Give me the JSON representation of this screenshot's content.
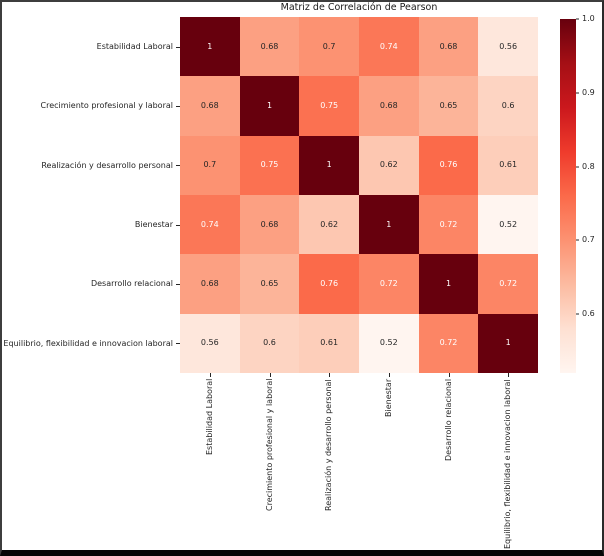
{
  "figure": {
    "background": "#ffffff",
    "frame_border_color": "#3d3d3d",
    "frame_bottom_bar_color": "#050505"
  },
  "chart_data": {
    "type": "heatmap",
    "title": "Matriz de Correlación de Pearson",
    "categories": [
      "Estabilidad Laboral",
      "Crecimiento profesional y laboral",
      "Realización y desarrollo personal",
      "Bienestar",
      "Desarrollo relacional",
      "Equilibrio, flexibilidad e innovacion laboral"
    ],
    "matrix": [
      [
        1,
        0.68,
        0.7,
        0.74,
        0.68,
        0.56
      ],
      [
        0.68,
        1,
        0.75,
        0.68,
        0.65,
        0.6
      ],
      [
        0.7,
        0.75,
        1,
        0.62,
        0.76,
        0.61
      ],
      [
        0.74,
        0.68,
        0.62,
        1,
        0.72,
        0.52
      ],
      [
        0.68,
        0.65,
        0.76,
        0.72,
        1,
        0.72
      ],
      [
        0.56,
        0.6,
        0.61,
        0.52,
        0.72,
        1
      ]
    ],
    "vmin": 0.52,
    "vmax": 1.0,
    "colormap": "Reds",
    "colormap_stops": [
      "#fff5f0",
      "#fee0d2",
      "#fcbba1",
      "#fc9272",
      "#fb6a4a",
      "#ef3b2c",
      "#cb181d",
      "#a50f15",
      "#67000d"
    ],
    "colorbar_ticks": [
      "1.0",
      "0.9",
      "0.8",
      "0.7",
      "0.6"
    ],
    "legend_position": "right",
    "grid": false,
    "annotation_text_dark": "#262626",
    "annotation_text_light": "#ffffff"
  }
}
